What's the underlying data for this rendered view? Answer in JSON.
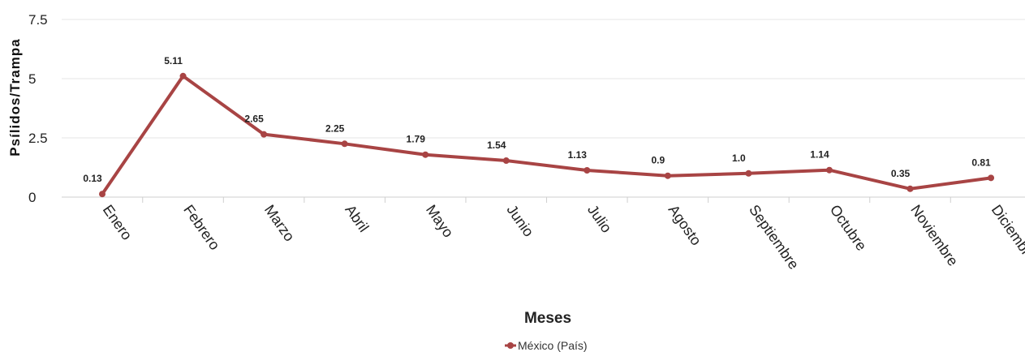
{
  "chart_data": {
    "type": "line",
    "xlabel": "Meses",
    "ylabel": "Psílidos/Trampa",
    "ylim": [
      0,
      7.5
    ],
    "yticks": [
      "0",
      "2.5",
      "5",
      "7.5"
    ],
    "ytick_values": [
      0,
      2.5,
      5,
      7.5
    ],
    "grid": "horizontal",
    "legend_position": "bottom-center",
    "categories": [
      "Enero",
      "Febrero",
      "Marzo",
      "Abril",
      "Mayo",
      "Junio",
      "Julio",
      "Agosto",
      "Septiembre",
      "Octubre",
      "Noviembre",
      "Diciembre"
    ],
    "series": [
      {
        "name": "México (País)",
        "color": "#a84444",
        "values": [
          0.13,
          5.11,
          2.65,
          2.25,
          1.79,
          1.54,
          1.13,
          0.9,
          1.0,
          1.14,
          0.35,
          0.81
        ],
        "labels": [
          "0.13",
          "5.11",
          "2.65",
          "2.25",
          "1.79",
          "1.54",
          "1.13",
          "0.9",
          "1.0",
          "1.14",
          "0.35",
          "0.81"
        ]
      }
    ]
  }
}
